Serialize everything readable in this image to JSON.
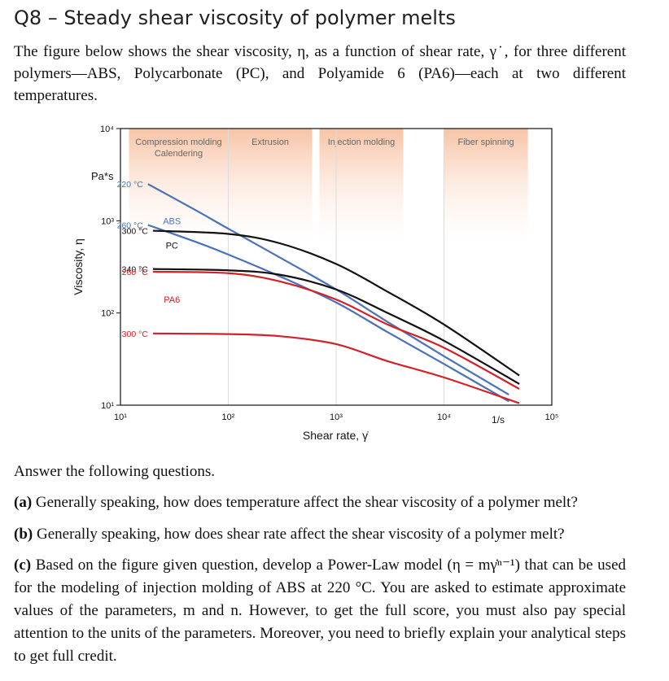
{
  "question": {
    "title": "Q8 – Steady shear viscosity of polymer melts",
    "intro": "The figure below shows the shear viscosity, η, as a function of shear rate, γ˙, for three different polymers—ABS, Polycarbonate (PC), and Polyamide 6 (PA6)—each at two different temperatures.",
    "answer_lead": "Answer the following questions.",
    "parts": [
      {
        "label": "(a)",
        "text": "Generally speaking, how does temperature affect the shear viscosity of a polymer melt?"
      },
      {
        "label": "(b)",
        "text": "Generally speaking, how does shear rate affect the shear viscosity of a polymer melt?"
      },
      {
        "label": "(c)",
        "text": "Based on the figure given question, develop a Power-Law model (η = mγ̇ⁿ⁻¹) that can be used for the modeling of injection molding of ABS at 220 °C. You are asked to estimate approximate values of the parameters, m and n. However, to get the full score, you must also pay special attention to the units of the parameters. Moreover, you need to briefly explain your analytical steps to get full credit."
      }
    ]
  },
  "chart_data": {
    "type": "line",
    "xscale": "log",
    "yscale": "log",
    "xlim": [
      10,
      100000
    ],
    "ylim": [
      10,
      10000
    ],
    "xlabel": "Shear rate, γ̇",
    "ylabel": "Viscosity, η",
    "x_unit": "1/s",
    "y_unit": "Pa*s",
    "x_ticks": [
      {
        "value": 10,
        "label": "10¹"
      },
      {
        "value": 100,
        "label": "10²"
      },
      {
        "value": 1000,
        "label": "10³"
      },
      {
        "value": 10000,
        "label": "10⁴"
      },
      {
        "value": 100000,
        "label": "10⁵"
      }
    ],
    "y_ticks": [
      {
        "value": 10,
        "label": "10¹"
      },
      {
        "value": 100,
        "label": "10²"
      },
      {
        "value": 1000,
        "label": "10³"
      },
      {
        "value": 10000,
        "label": "10⁴"
      }
    ],
    "process_regions": [
      {
        "label": "Compression molding\nCalendering",
        "x_range": [
          12,
          100
        ]
      },
      {
        "label": "Extrusion",
        "x_range": [
          100,
          600
        ]
      },
      {
        "label": "Injection molding",
        "x_range": [
          700,
          4200
        ]
      },
      {
        "label": "Fiber spinning",
        "x_range": [
          10000,
          60000
        ]
      }
    ],
    "polymer_labels": [
      {
        "name": "ABS",
        "color": "#4a72b8",
        "x": 30,
        "y": 1000
      },
      {
        "name": "PC",
        "color": "#111111",
        "x": 30,
        "y": 540
      },
      {
        "name": "PA6",
        "color": "#d42027",
        "x": 30,
        "y": 140
      }
    ],
    "series": [
      {
        "polymer": "ABS",
        "temperature": "220 °C",
        "color": "#4a72b8",
        "points": [
          [
            18,
            2500
          ],
          [
            50,
            1300
          ],
          [
            100,
            820
          ],
          [
            300,
            400
          ],
          [
            1000,
            180
          ],
          [
            3000,
            80
          ],
          [
            10000,
            34
          ],
          [
            40000,
            13
          ]
        ]
      },
      {
        "polymer": "ABS",
        "temperature": "260 °C",
        "color": "#4a72b8",
        "points": [
          [
            18,
            900
          ],
          [
            50,
            590
          ],
          [
            100,
            430
          ],
          [
            300,
            250
          ],
          [
            1000,
            130
          ],
          [
            3000,
            62
          ],
          [
            10000,
            28
          ],
          [
            40000,
            11
          ]
        ]
      },
      {
        "polymer": "PC",
        "temperature": "300 °C",
        "color": "#111111",
        "points": [
          [
            20,
            780
          ],
          [
            100,
            720
          ],
          [
            300,
            570
          ],
          [
            1000,
            340
          ],
          [
            3000,
            170
          ],
          [
            10000,
            75
          ],
          [
            50000,
            21
          ]
        ]
      },
      {
        "polymer": "PC",
        "temperature": "340 °C",
        "color": "#111111",
        "points": [
          [
            20,
            300
          ],
          [
            100,
            290
          ],
          [
            300,
            260
          ],
          [
            1000,
            180
          ],
          [
            3000,
            100
          ],
          [
            10000,
            50
          ],
          [
            50000,
            17
          ]
        ]
      },
      {
        "polymer": "PA6",
        "temperature": "260 °C",
        "color": "#d42027",
        "points": [
          [
            20,
            280
          ],
          [
            100,
            270
          ],
          [
            300,
            220
          ],
          [
            1000,
            140
          ],
          [
            3000,
            75
          ],
          [
            10000,
            42
          ],
          [
            50000,
            15
          ]
        ]
      },
      {
        "polymer": "PA6",
        "temperature": "300 °C",
        "color": "#d42027",
        "points": [
          [
            20,
            60
          ],
          [
            100,
            59
          ],
          [
            300,
            56
          ],
          [
            1000,
            46
          ],
          [
            3000,
            30
          ],
          [
            10000,
            20
          ],
          [
            50000,
            10.5
          ]
        ]
      }
    ]
  }
}
